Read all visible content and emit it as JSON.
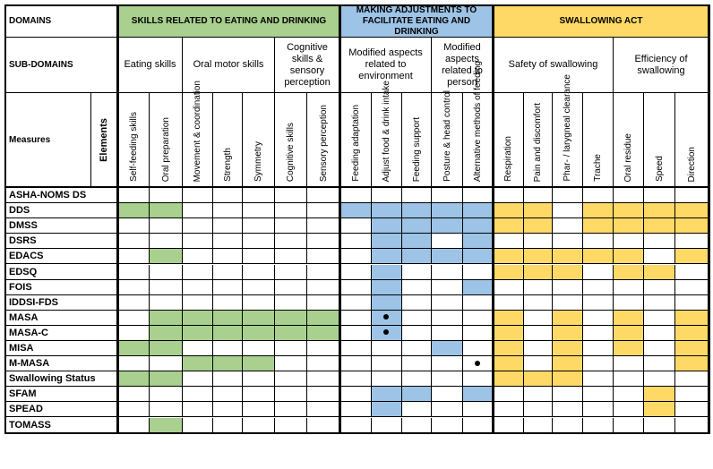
{
  "colors": {
    "skills": "#a9d08e",
    "adjust": "#9dc3e6",
    "swallow": "#ffd966",
    "white": "#ffffff"
  },
  "header": {
    "domains_label": "DOMAINS",
    "subdomains_label": "SUB-DOMAINS",
    "measures_label": "Measures",
    "elements_label": "Elements",
    "domains": [
      {
        "key": "skills",
        "label": "SKILLS RELATED TO EATING AND DRINKING"
      },
      {
        "key": "adjust",
        "label": "MAKING ADJUSTMENTS TO FACILITATE EATING AND DRINKING"
      },
      {
        "key": "swallow",
        "label": "SWALLOWING ACT"
      }
    ],
    "subdomains": [
      "Eating skills",
      "Oral motor skills",
      "Cognitive skills & sensory perception",
      "Modified aspects related to environment",
      "Modified aspects related to person",
      "Safety of swallowing",
      "Efficiency of swallowing"
    ],
    "elements": [
      "Self-feeding skills",
      "Oral preparation",
      "Movement & coordination",
      "Strength",
      "Symmetry",
      "Cognitive skills",
      "Sensory perception",
      "Feeding adaptation",
      "Adjust food & drink intake",
      "Feeding support",
      "Posture & head control",
      "Alternative methods of feeding",
      "Respiration",
      "Pain and discomfort",
      "Phar- / larygneal clearance",
      "Trache",
      "Oral residue",
      "Speed",
      "Direction"
    ]
  },
  "rows": [
    {
      "name": "ASHA-NOMS DS",
      "filled": "",
      "dots": []
    },
    {
      "name": "DDS",
      "filled": "1100000111111101111",
      "dots": []
    },
    {
      "name": "DMSS",
      "filled": "0000000011111101111",
      "dots": []
    },
    {
      "name": "DSRS",
      "filled": "0000000011010000000",
      "dots": []
    },
    {
      "name": "EDACS",
      "filled": "0100000011111111101",
      "dots": []
    },
    {
      "name": "EDSQ",
      "filled": "0000000010001110110",
      "dots": []
    },
    {
      "name": "FOIS",
      "filled": "0000000010010000000",
      "dots": []
    },
    {
      "name": "IDDSI-FDS",
      "filled": "0000000010000000000",
      "dots": []
    },
    {
      "name": "MASA",
      "filled": "0111111010001010101",
      "dots": [
        8
      ]
    },
    {
      "name": "MASA-C",
      "filled": "0111111010001010101",
      "dots": [
        8
      ]
    },
    {
      "name": "MISA",
      "filled": "1100000000101010101",
      "dots": []
    },
    {
      "name": "M-MASA",
      "filled": "0011100000001010001",
      "dots": [
        11
      ]
    },
    {
      "name": "Swallowing Status",
      "filled": "1100000000001110000",
      "dots": []
    },
    {
      "name": "SFAM",
      "filled": "0000000011010000010",
      "dots": []
    },
    {
      "name": "SPEAD",
      "filled": "0000000010000000010",
      "dots": []
    },
    {
      "name": "TOMASS",
      "filled": "0100000000000000000",
      "dots": []
    }
  ]
}
